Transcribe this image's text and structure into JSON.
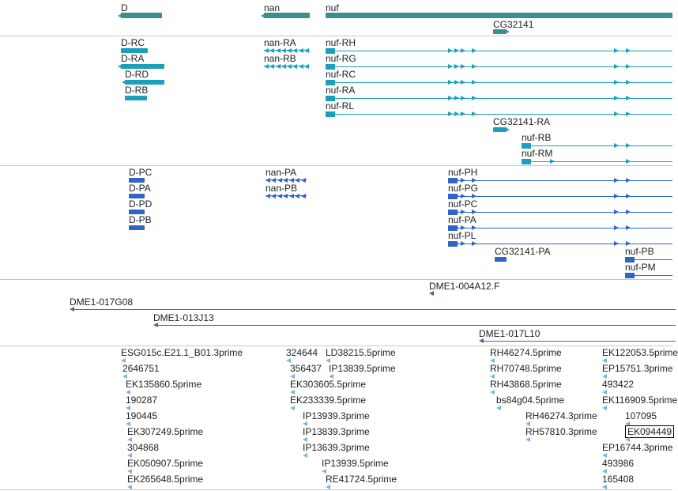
{
  "colors": {
    "gene": "#3a8f8f",
    "transcript": "#1aa0bb",
    "protein": "#2f64c8",
    "clone": "#6e4fa8",
    "est": "#7fb3dd",
    "separator": "#c8c8c8"
  },
  "tracks": [
    {
      "name": "genes-track",
      "features": [
        {
          "label": "D",
          "style": "gene"
        },
        {
          "label": "nan",
          "style": "gene"
        },
        {
          "label": "nuf",
          "style": "gene"
        },
        {
          "label": "CG32141",
          "style": "gene"
        }
      ]
    },
    {
      "name": "transcripts-track",
      "features": [
        {
          "label": "D-RC",
          "style": "transcript"
        },
        {
          "label": "D-RA",
          "style": "transcript"
        },
        {
          "label": "D-RD",
          "style": "transcript"
        },
        {
          "label": "D-RB",
          "style": "transcript"
        },
        {
          "label": "nan-RA",
          "style": "transcript"
        },
        {
          "label": "nan-RB",
          "style": "transcript"
        },
        {
          "label": "nuf-RH",
          "style": "transcript"
        },
        {
          "label": "nuf-RG",
          "style": "transcript"
        },
        {
          "label": "nuf-RC",
          "style": "transcript"
        },
        {
          "label": "nuf-RA",
          "style": "transcript"
        },
        {
          "label": "nuf-RL",
          "style": "transcript"
        },
        {
          "label": "CG32141-RA",
          "style": "transcript"
        },
        {
          "label": "nuf-RB",
          "style": "transcript"
        },
        {
          "label": "nuf-RM",
          "style": "transcript"
        }
      ]
    },
    {
      "name": "proteins-track",
      "features": [
        {
          "label": "D-PC",
          "style": "protein"
        },
        {
          "label": "D-PA",
          "style": "protein"
        },
        {
          "label": "D-PD",
          "style": "protein"
        },
        {
          "label": "D-PB",
          "style": "protein"
        },
        {
          "label": "nan-PA",
          "style": "protein"
        },
        {
          "label": "nan-PB",
          "style": "protein"
        },
        {
          "label": "nuf-PH",
          "style": "protein"
        },
        {
          "label": "nuf-PG",
          "style": "protein"
        },
        {
          "label": "nuf-PC",
          "style": "protein"
        },
        {
          "label": "nuf-PA",
          "style": "protein"
        },
        {
          "label": "nuf-PL",
          "style": "protein"
        },
        {
          "label": "CG32141-PA",
          "style": "protein"
        },
        {
          "label": "nuf-PB",
          "style": "protein"
        },
        {
          "label": "nuf-PM",
          "style": "protein"
        }
      ]
    },
    {
      "name": "clones-track",
      "features": [
        {
          "label": "DME1-004A12.F",
          "style": "clone"
        },
        {
          "label": "DME1-017G08",
          "style": "clone"
        },
        {
          "label": "DME1-013J13",
          "style": "clone"
        },
        {
          "label": "DME1-017L10",
          "style": "clone"
        }
      ]
    },
    {
      "name": "est-track",
      "features": [
        {
          "label": "ESG015c.E21.1_B01.3prime",
          "style": "est"
        },
        {
          "label": "2646751",
          "style": "est"
        },
        {
          "label": "EK135860.5prime",
          "style": "est"
        },
        {
          "label": "190287",
          "style": "est"
        },
        {
          "label": "190445",
          "style": "est"
        },
        {
          "label": "EK307249.5prime",
          "style": "est"
        },
        {
          "label": "304868",
          "style": "est"
        },
        {
          "label": "EK050907.5prime",
          "style": "est"
        },
        {
          "label": "EK265648.5prime",
          "style": "est"
        },
        {
          "label": "324644",
          "style": "est"
        },
        {
          "label": "LD38215.5prime",
          "style": "est"
        },
        {
          "label": "356437",
          "style": "est"
        },
        {
          "label": "IP13839.5prime",
          "style": "est"
        },
        {
          "label": "EK303605.5prime",
          "style": "est"
        },
        {
          "label": "EK233339.5prime",
          "style": "est"
        },
        {
          "label": "IP13939.3prime",
          "style": "est"
        },
        {
          "label": "IP13839.3prime",
          "style": "est"
        },
        {
          "label": "IP13639.3prime",
          "style": "est"
        },
        {
          "label": "IP13939.5prime",
          "style": "est"
        },
        {
          "label": "RE41724.5prime",
          "style": "est"
        },
        {
          "label": "RH46274.5prime",
          "style": "est"
        },
        {
          "label": "RH70748.5prime",
          "style": "est"
        },
        {
          "label": "RH43868.5prime",
          "style": "est"
        },
        {
          "label": "bs84g04.5prime",
          "style": "est"
        },
        {
          "label": "RH46274.3prime",
          "style": "est"
        },
        {
          "label": "RH57810.3prime",
          "style": "est"
        },
        {
          "label": "EK122053.5prime",
          "style": "est"
        },
        {
          "label": "EP15751.3prime",
          "style": "est"
        },
        {
          "label": "493422",
          "style": "est"
        },
        {
          "label": "EK116909.5prime",
          "style": "est"
        },
        {
          "label": "107095",
          "style": "est"
        },
        {
          "label": "EK094449",
          "style": "est"
        },
        {
          "label": "EP16744.3prime",
          "style": "est"
        },
        {
          "label": "493986",
          "style": "est"
        },
        {
          "label": "165408",
          "style": "est"
        }
      ]
    }
  ]
}
